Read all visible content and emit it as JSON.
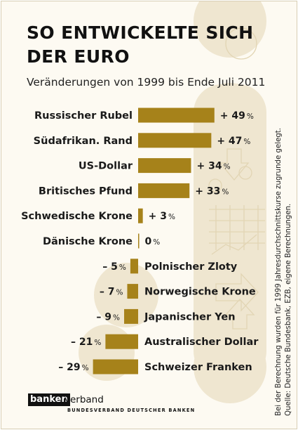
{
  "title_line1": "SO ENTWICKELTE SICH",
  "title_line2": "DER EURO",
  "subtitle": "Veränderungen von 1999 bis Ende Juli 2011",
  "source_line1": "Bei der Berechnung wurden für 1999 Jahresdurchschnittskurse zugrunde gelegt.",
  "source_line2": "Quelle: Deutsche Bundesbank, EZB, eigene Berechnungen.",
  "logo": {
    "box_text": "banken",
    "rest_text": "verband",
    "sub_text": "BUNDESVERBAND DEUTSCHER BANKEN"
  },
  "colors": {
    "bar": "#a6821a",
    "background": "#fdfaf2",
    "decor": "#efe6d0"
  },
  "chart_data": {
    "type": "bar",
    "orientation": "horizontal",
    "unit": "%",
    "categories": [
      "Russischer Rubel",
      "Südafrikan. Rand",
      "US-Dollar",
      "Britisches Pfund",
      "Schwedische Krone",
      "Dänische Krone",
      "Polnischer Zloty",
      "Norwegische Krone",
      "Japanischer Yen",
      "Australischer Dollar",
      "Schweizer Franken"
    ],
    "values": [
      49,
      47,
      34,
      33,
      3,
      0,
      -5,
      -7,
      -9,
      -21,
      -29
    ],
    "value_labels": [
      "+ 49",
      "+ 47",
      "+ 34",
      "+ 33",
      "+ 3",
      "0",
      "– 5",
      "– 7",
      "– 9",
      "– 21",
      "– 29"
    ],
    "percent_sign": "%"
  }
}
